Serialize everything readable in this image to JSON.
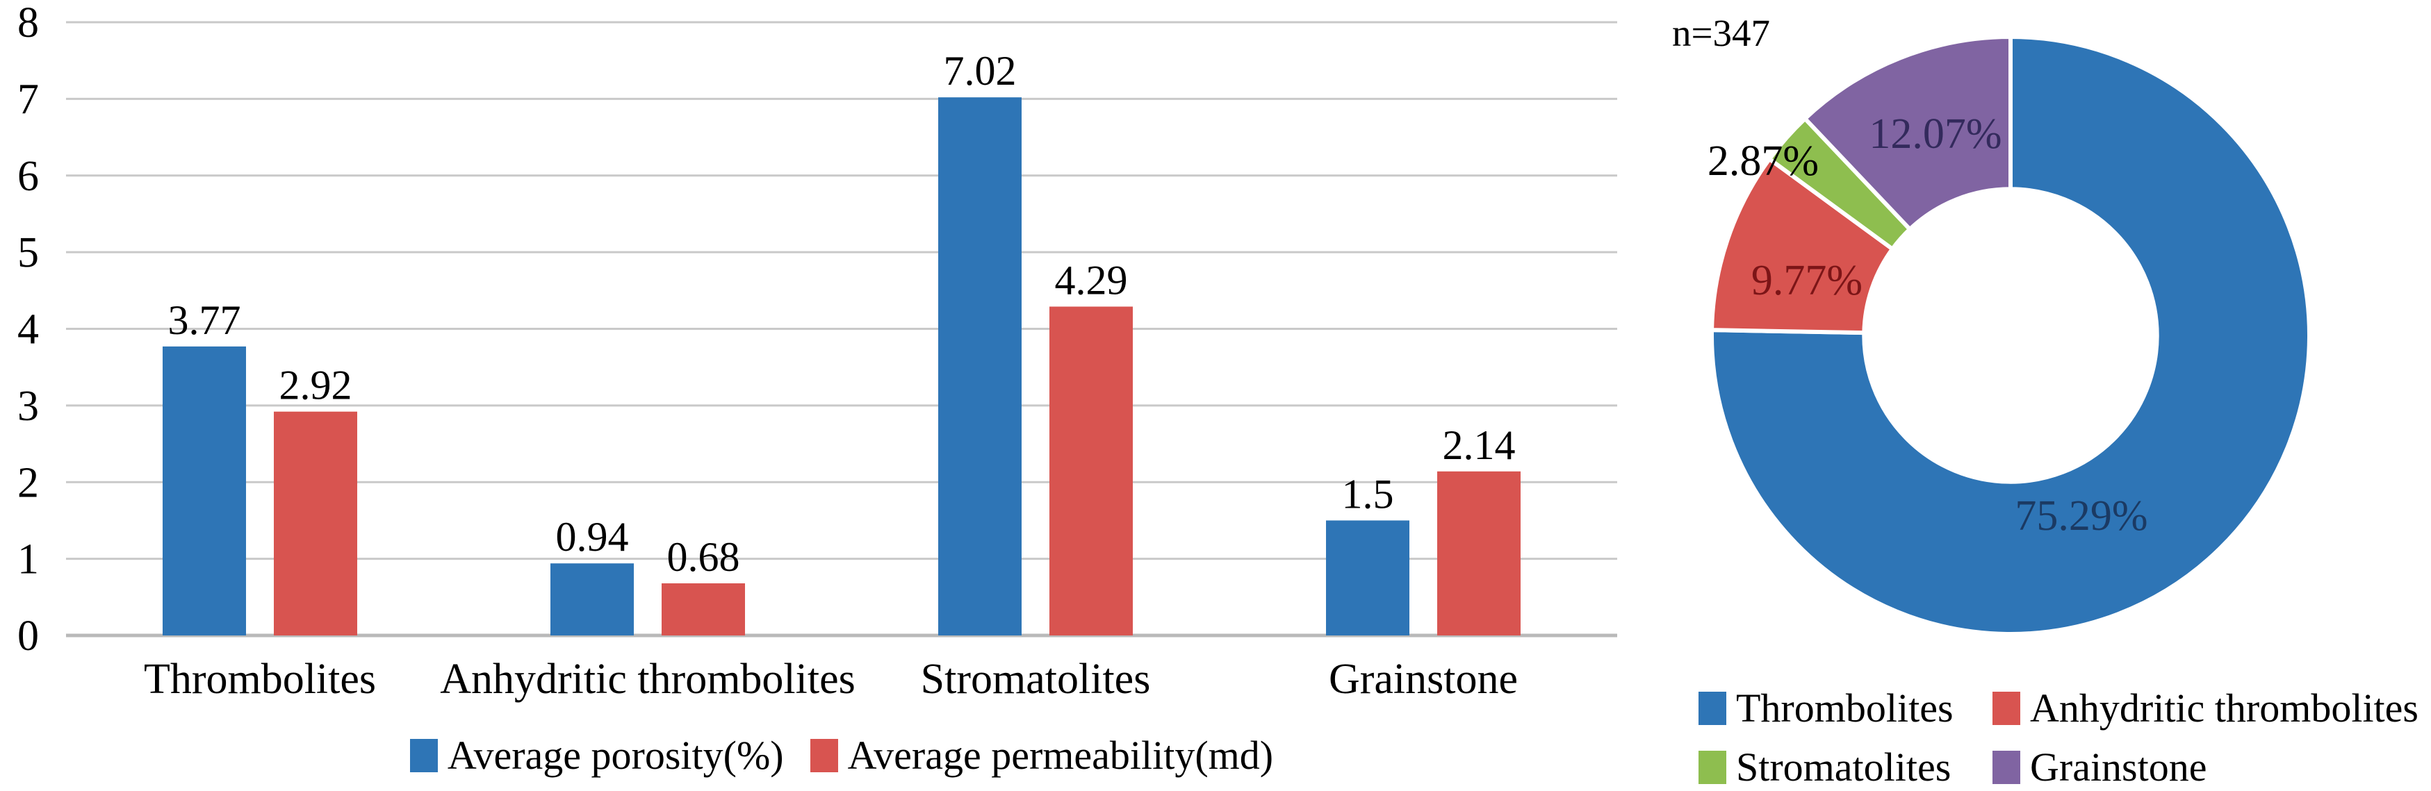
{
  "chart_data": [
    {
      "type": "bar",
      "title": "",
      "xlabel": "",
      "ylabel": "",
      "ylim": [
        0,
        8
      ],
      "yticks": [
        "0",
        "1",
        "2",
        "3",
        "4",
        "5",
        "6",
        "7",
        "8"
      ],
      "grid": true,
      "legend_position": "bottom",
      "categories": [
        "Thrombolites",
        "Anhydritic thrombolites",
        "Stromatolites",
        "Grainstone"
      ],
      "series": [
        {
          "name": "Average porosity(%)",
          "color": "#2E75B6",
          "values": [
            3.77,
            0.94,
            7.02,
            1.5
          ],
          "labels": [
            "3.77",
            "0.94",
            "7.02",
            "1.5"
          ]
        },
        {
          "name": "Average permeability(md)",
          "color": "#D85450",
          "values": [
            2.92,
            0.68,
            4.29,
            2.14
          ],
          "labels": [
            "2.92",
            "0.68",
            "4.29",
            "2.14"
          ]
        }
      ],
      "colors": {
        "gridline": "#C9C9C9",
        "baseline": "#B9B9B9",
        "text": "#000000"
      }
    },
    {
      "type": "pie",
      "subtype": "donut",
      "annotation": "n=347",
      "start_angle_deg": 0,
      "direction": "clockwise",
      "donut_hole_ratio": 0.49,
      "legend_position": "bottom",
      "slices": [
        {
          "label": "Thrombolites",
          "pct": 75.29,
          "display": "75.29%",
          "color": "#2E75B6",
          "label_color": "#1B3A63"
        },
        {
          "label": "Anhydritic thrombolites",
          "pct": 9.77,
          "display": "9.77%",
          "color": "#D85450",
          "label_color": "#7C1517"
        },
        {
          "label": "Stromatolites",
          "pct": 2.87,
          "display": "2.87%",
          "color": "#8EBE4F",
          "label_color": "#000000"
        },
        {
          "label": "Grainstone",
          "pct": 12.07,
          "display": "12.07%",
          "color": "#8064A2",
          "label_color": "#332A5C"
        }
      ]
    }
  ]
}
